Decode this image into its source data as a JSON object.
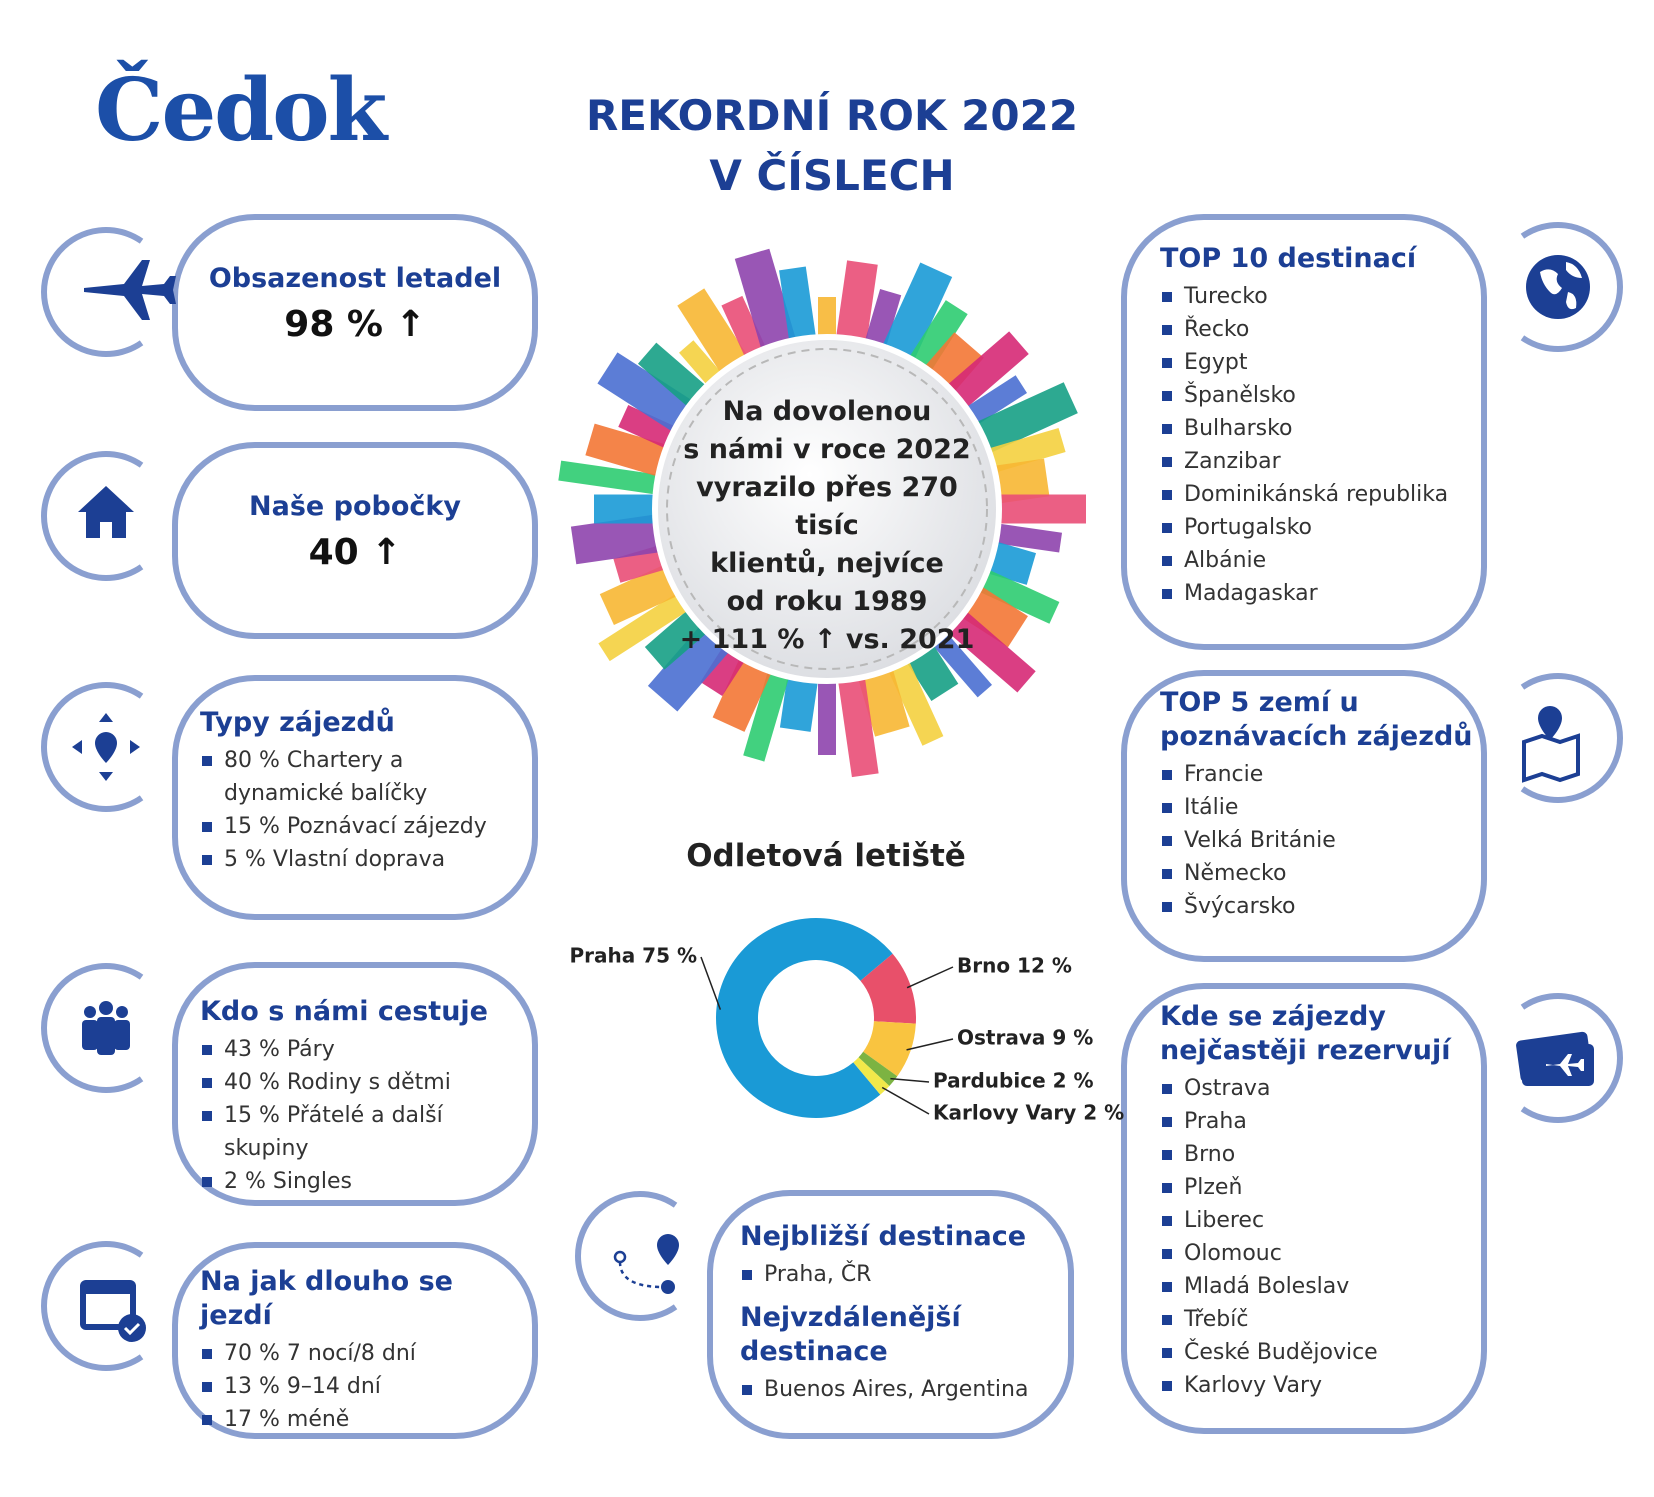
{
  "logo": "Čedok",
  "title": [
    "REKORDNÍ ROK 2022",
    "V ČÍSLECH"
  ],
  "center_text": [
    "Na dovolenou",
    "s námi v roce 2022",
    "vyrazilo přes 270 tisíc",
    "klientů, nejvíce",
    "od roku 1989",
    "+ 111 % ↑ vs. 2021"
  ],
  "boxes": [
    {
      "title": "Obsazenost letadel",
      "value": "98 % ↑"
    },
    {
      "title": "Naše pobočky",
      "value": "40 ↑"
    },
    {
      "title": "Typy zájezdů",
      "items": [
        "80 % Chartery a dynamické balíčky",
        "15 % Poznávací zájezdy",
        "5 % Vlastní doprava"
      ]
    },
    {
      "title": "Kdo s námi cestuje",
      "items": [
        "43 % Páry",
        "40 % Rodiny s dětmi",
        "15 % Přátelé a další skupiny",
        "2 % Singles"
      ]
    },
    {
      "title": "Na jak dlouho se jezdí",
      "items": [
        "70 % 7 nocí/8 dní",
        "13 % 9–14 dní",
        "17 % méně"
      ]
    },
    {
      "title": "TOP 10 destinací",
      "items": [
        "Turecko",
        "Řecko",
        "Egypt",
        "Španělsko",
        "Bulharsko",
        "Zanzibar",
        "Dominikánská republika",
        "Portugalsko",
        "Albánie",
        "Madagaskar"
      ]
    },
    {
      "title": "TOP 5 zemí u poznávacích zájezdů",
      "items": [
        "Francie",
        "Itálie",
        "Velká Británie",
        "Německo",
        "Švýcarsko"
      ]
    },
    {
      "title": "Kde se zájezdy nejčastěji rezervují",
      "items": [
        "Ostrava",
        "Praha",
        "Brno",
        "Plzeň",
        "Liberec",
        "Olomouc",
        "Mladá Boleslav",
        "Třebíč",
        "České Budějovice",
        "Karlovy Vary"
      ]
    }
  ],
  "destinations": [
    {
      "title": "Nejbližší destinace",
      "items": [
        "Praha, ČR"
      ]
    },
    {
      "title": "Nejvzdálenější destinace",
      "items": [
        "Buenos Aires, Argentina"
      ]
    }
  ],
  "chart_data": {
    "type": "donut",
    "title": "Odletová letiště",
    "categories": [
      "Praha",
      "Brno",
      "Ostrava",
      "Pardubice",
      "Karlovy Vary"
    ],
    "values": [
      75,
      12,
      9,
      2,
      2
    ],
    "value_labels": [
      "Praha 75 %",
      "Brno 12 %",
      "Ostrava 9 %",
      "Pardubice 2 %",
      "Karlovy Vary 2 %"
    ],
    "colors": [
      "#1a9ad6",
      "#e8506a",
      "#f9c440",
      "#7cb342",
      "#f1e84a"
    ]
  }
}
